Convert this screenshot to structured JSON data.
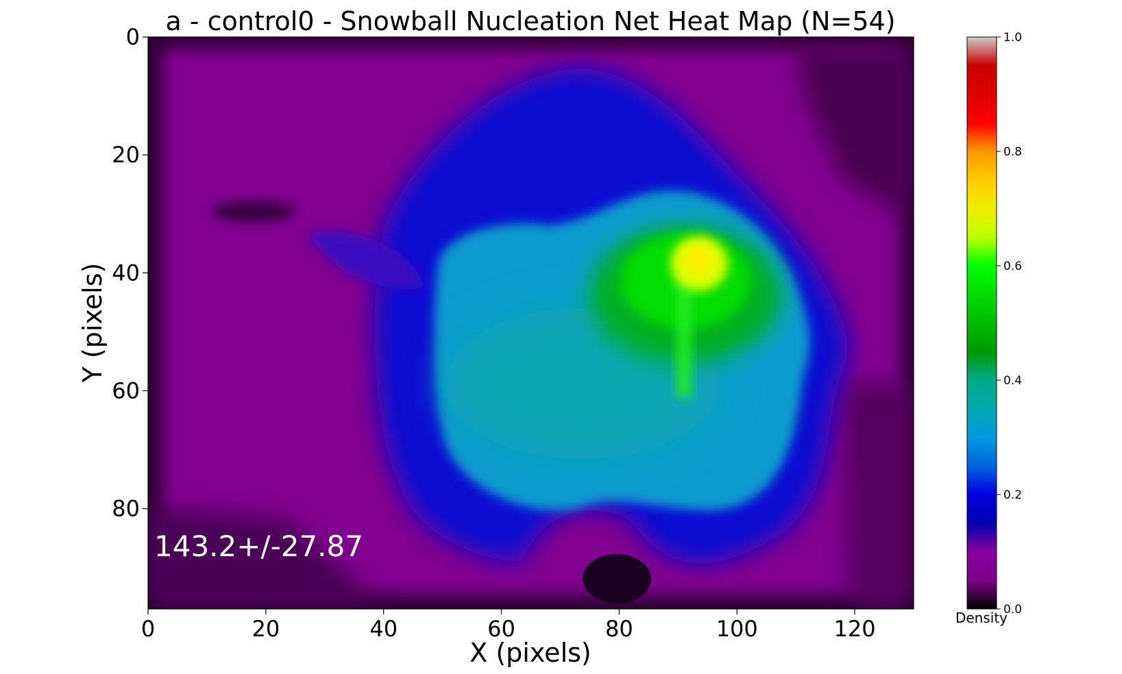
{
  "chart_data": {
    "type": "heatmap",
    "title": "a - control0 - Snowball Nucleation Net Heat Map (N=54)",
    "xlabel": "X (pixels)",
    "ylabel": "Y (pixels)",
    "xlim": [
      0,
      130
    ],
    "ylim": [
      97,
      0
    ],
    "x_ticks": [
      "0",
      "20",
      "40",
      "60",
      "80",
      "100",
      "120"
    ],
    "x_tick_values": [
      0,
      20,
      40,
      60,
      80,
      100,
      120
    ],
    "y_ticks": [
      "0",
      "20",
      "40",
      "60",
      "80"
    ],
    "y_tick_values": [
      0,
      20,
      40,
      60,
      80
    ],
    "annotation": "143.2+/-27.87",
    "colormap": "nipy_spectral",
    "colorbar": {
      "label": "Density",
      "range": [
        0,
        1
      ],
      "ticks": [
        "0.0",
        "0.2",
        "0.4",
        "0.6",
        "0.8",
        "1.0"
      ],
      "tick_values": [
        0,
        0.2,
        0.4,
        0.6,
        0.8,
        1.0
      ]
    },
    "density_features": [
      {
        "region": "peak",
        "x": 93,
        "y": 39,
        "density": 0.7
      },
      {
        "region": "green core",
        "x": 90,
        "y": 45,
        "density": 0.55
      },
      {
        "region": "cyan blob",
        "x": 80,
        "y": 58,
        "density": 0.33
      },
      {
        "region": "blue ring",
        "x": 75,
        "y": 30,
        "density": 0.2
      },
      {
        "region": "purple background",
        "x": 20,
        "y": 20,
        "density": 0.07
      },
      {
        "region": "dark border",
        "x": 2,
        "y": 2,
        "density": 0.02
      }
    ]
  }
}
